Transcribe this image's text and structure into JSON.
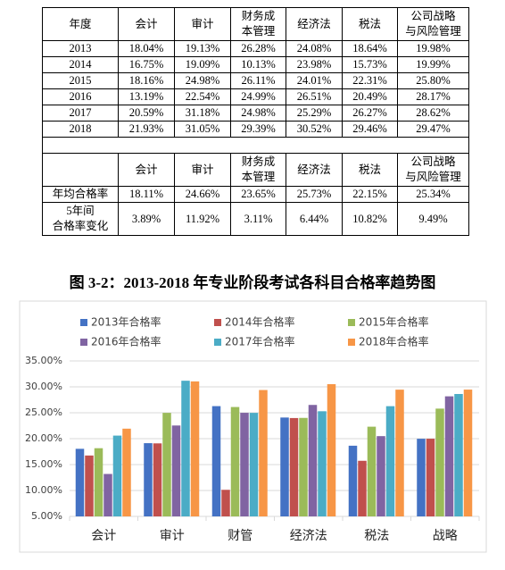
{
  "table": {
    "header": [
      "年度",
      "会计",
      "审计",
      "财务成\n本管理",
      "经济法",
      "税法",
      "公司战略\n与风险管理"
    ],
    "rows": [
      [
        "2013",
        "18.04%",
        "19.13%",
        "26.28%",
        "24.08%",
        "18.64%",
        "19.98%"
      ],
      [
        "2014",
        "16.75%",
        "19.09%",
        "10.13%",
        "23.98%",
        "15.73%",
        "19.99%"
      ],
      [
        "2015",
        "18.16%",
        "24.98%",
        "26.11%",
        "24.01%",
        "22.31%",
        "25.80%"
      ],
      [
        "2016",
        "13.19%",
        "22.54%",
        "24.99%",
        "26.51%",
        "20.49%",
        "28.17%"
      ],
      [
        "2017",
        "20.59%",
        "31.18%",
        "24.98%",
        "25.29%",
        "26.27%",
        "28.62%"
      ],
      [
        "2018",
        "21.93%",
        "31.05%",
        "29.39%",
        "30.52%",
        "29.46%",
        "29.47%"
      ]
    ],
    "header2": [
      "会计",
      "审计",
      "财务成\n本管理",
      "经济法",
      "税法",
      "公司战略\n与风险管理"
    ],
    "summary": [
      [
        "年均合格率",
        "18.11%",
        "24.66%",
        "23.65%",
        "25.73%",
        "22.15%",
        "25.34%"
      ],
      [
        "5年间\n合格率变化",
        "3.89%",
        "11.92%",
        "3.11%",
        "6.44%",
        "10.82%",
        "9.49%"
      ]
    ]
  },
  "caption": "图 3-2：2013-2018 年专业阶段考试各科目合格率趋势图",
  "chart_data": {
    "type": "bar",
    "categories": [
      "会计",
      "审计",
      "财管",
      "经济法",
      "税法",
      "战略"
    ],
    "series": [
      {
        "name": "2013年合格率",
        "color": "#4472c4",
        "values": [
          18.04,
          19.13,
          26.28,
          24.08,
          18.64,
          19.98
        ]
      },
      {
        "name": "2014年合格率",
        "color": "#c0504d",
        "values": [
          16.75,
          19.09,
          10.13,
          23.98,
          15.73,
          19.99
        ]
      },
      {
        "name": "2015年合格率",
        "color": "#9bbb59",
        "values": [
          18.16,
          24.98,
          26.11,
          24.01,
          22.31,
          25.8
        ]
      },
      {
        "name": "2016年合格率",
        "color": "#8064a2",
        "values": [
          13.19,
          22.54,
          24.99,
          26.51,
          20.49,
          28.17
        ]
      },
      {
        "name": "2017年合格率",
        "color": "#4bacc6",
        "values": [
          20.59,
          31.18,
          24.98,
          25.29,
          26.27,
          28.62
        ]
      },
      {
        "name": "2018年合格率",
        "color": "#f79646",
        "values": [
          21.93,
          31.05,
          29.39,
          30.52,
          29.46,
          29.47
        ]
      }
    ],
    "ylim": [
      5,
      35
    ],
    "yticks": [
      {
        "value": 5,
        "label": "5.00%"
      },
      {
        "value": 10,
        "label": "10.00%"
      },
      {
        "value": 15,
        "label": "15.00%"
      },
      {
        "value": 20,
        "label": "20.00%"
      },
      {
        "value": 25,
        "label": "25.00%"
      },
      {
        "value": 30,
        "label": "30.00%"
      },
      {
        "value": 35,
        "label": "35.00%"
      }
    ],
    "grid": true,
    "legend": "top"
  }
}
